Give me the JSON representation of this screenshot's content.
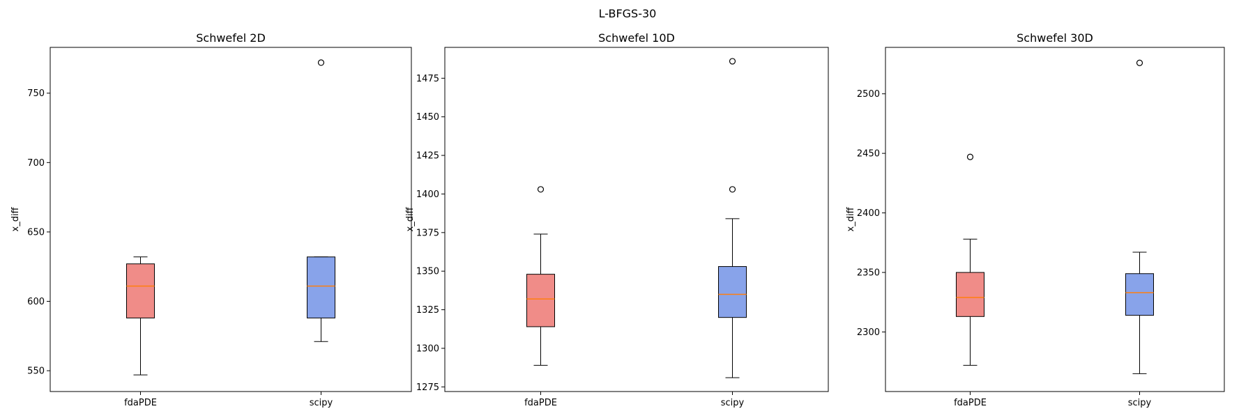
{
  "suptitle": "L-BFGS-30",
  "colors": {
    "fdaPDE": "#f08c88",
    "scipy": "#88a3ea",
    "median": "#ff7f0e"
  },
  "chart_data": [
    {
      "type": "box",
      "title": "Schwefel 2D",
      "ylabel": "x_diff",
      "categories": [
        "fdaPDE",
        "scipy"
      ],
      "ylim": [
        535,
        783
      ],
      "yticks": [
        550,
        600,
        650,
        700,
        750
      ],
      "boxes": [
        {
          "name": "fdaPDE",
          "whislo": 547,
          "q1": 588,
          "med": 611,
          "q3": 627,
          "whishi": 632,
          "fliers": []
        },
        {
          "name": "scipy",
          "whislo": 571,
          "q1": 588,
          "med": 611,
          "q3": 632,
          "whishi": 632,
          "fliers": [
            772
          ]
        }
      ]
    },
    {
      "type": "box",
      "title": "Schwefel 10D",
      "ylabel": "x_diff",
      "categories": [
        "fdaPDE",
        "scipy"
      ],
      "ylim": [
        1272,
        1495
      ],
      "yticks": [
        1275,
        1300,
        1325,
        1350,
        1375,
        1400,
        1425,
        1450,
        1475
      ],
      "boxes": [
        {
          "name": "fdaPDE",
          "whislo": 1289,
          "q1": 1314,
          "med": 1332,
          "q3": 1348,
          "whishi": 1374,
          "fliers": [
            1403
          ]
        },
        {
          "name": "scipy",
          "whislo": 1281,
          "q1": 1320,
          "med": 1335,
          "q3": 1353,
          "whishi": 1384,
          "fliers": [
            1403,
            1486
          ]
        }
      ]
    },
    {
      "type": "box",
      "title": "Schwefel 30D",
      "ylabel": "x_diff",
      "categories": [
        "fdaPDE",
        "scipy"
      ],
      "ylim": [
        2250,
        2539
      ],
      "yticks": [
        2300,
        2350,
        2400,
        2450,
        2500
      ],
      "boxes": [
        {
          "name": "fdaPDE",
          "whislo": 2272,
          "q1": 2313,
          "med": 2329,
          "q3": 2350,
          "whishi": 2378,
          "fliers": [
            2447
          ]
        },
        {
          "name": "scipy",
          "whislo": 2265,
          "q1": 2314,
          "med": 2333,
          "q3": 2349,
          "whishi": 2367,
          "fliers": [
            2526
          ]
        }
      ]
    }
  ]
}
